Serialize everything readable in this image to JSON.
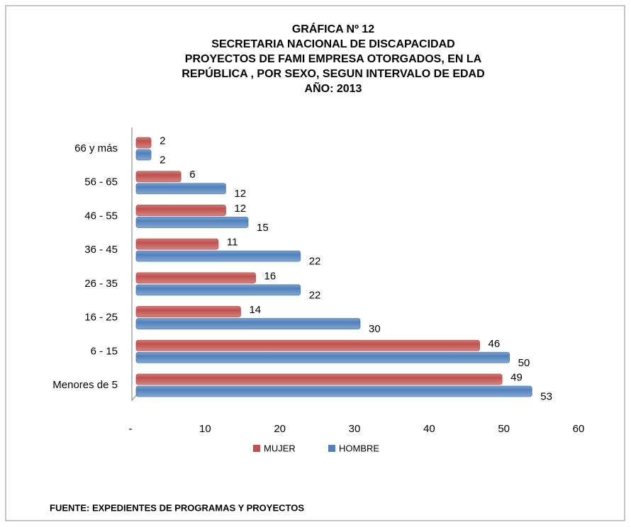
{
  "chart_data": {
    "type": "bar",
    "orientation": "horizontal",
    "title": [
      "GRÁFICA Nº 12",
      "SECRETARIA NACIONAL  DE DISCAPACIDAD",
      "PROYECTOS DE FAMI EMPRESA OTORGADOS,  EN LA",
      "REPÚBLICA , POR SEXO, SEGUN INTERVALO DE EDAD",
      "AÑO: 2013"
    ],
    "categories": [
      "Menores de 5",
      "6 - 15",
      "16 - 25",
      "26 - 35",
      "36 - 45",
      "46 - 55",
      "56 - 65",
      "66 y más"
    ],
    "series": [
      {
        "name": "MUJER",
        "color": "#c0504d",
        "values": [
          49,
          46,
          14,
          16,
          11,
          12,
          6,
          2
        ]
      },
      {
        "name": "HOMBRE",
        "color": "#4f81bd",
        "values": [
          53,
          50,
          30,
          22,
          22,
          15,
          12,
          2
        ]
      }
    ],
    "xlim": [
      0,
      60
    ],
    "xticks": [
      {
        "value": 0,
        "label": "-"
      },
      10,
      20,
      30,
      40,
      50,
      60
    ],
    "legend": "bottom",
    "source": "FUENTE: EXPEDIENTES DE PROGRAMAS Y PROYECTOS"
  }
}
